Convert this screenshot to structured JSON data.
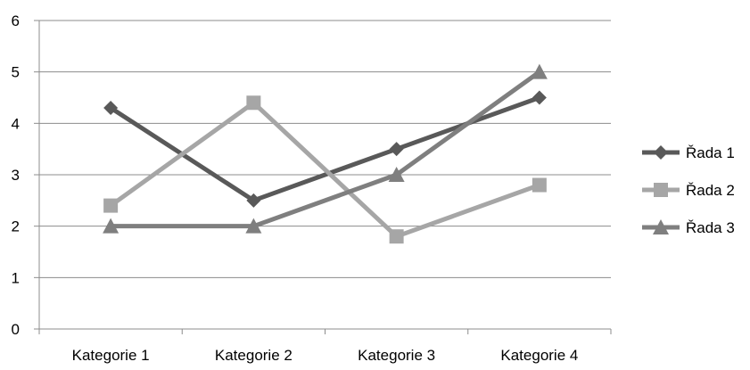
{
  "chart_data": {
    "type": "line",
    "categories": [
      "Kategorie 1",
      "Kategorie 2",
      "Kategorie 3",
      "Kategorie 4"
    ],
    "series": [
      {
        "name": "Řada 1",
        "values": [
          4.3,
          2.5,
          3.5,
          4.5
        ],
        "color": "#595959",
        "marker": "diamond"
      },
      {
        "name": "Řada 2",
        "values": [
          2.4,
          4.4,
          1.8,
          2.8
        ],
        "color": "#a6a6a6",
        "marker": "square"
      },
      {
        "name": "Řada 3",
        "values": [
          2.0,
          2.0,
          3.0,
          5.0
        ],
        "color": "#7f7f7f",
        "marker": "triangle"
      }
    ],
    "ylim": [
      0,
      6
    ],
    "yticks": [
      "0",
      "1",
      "2",
      "3",
      "4",
      "5",
      "6"
    ],
    "grid": true,
    "legend_position": "right"
  }
}
